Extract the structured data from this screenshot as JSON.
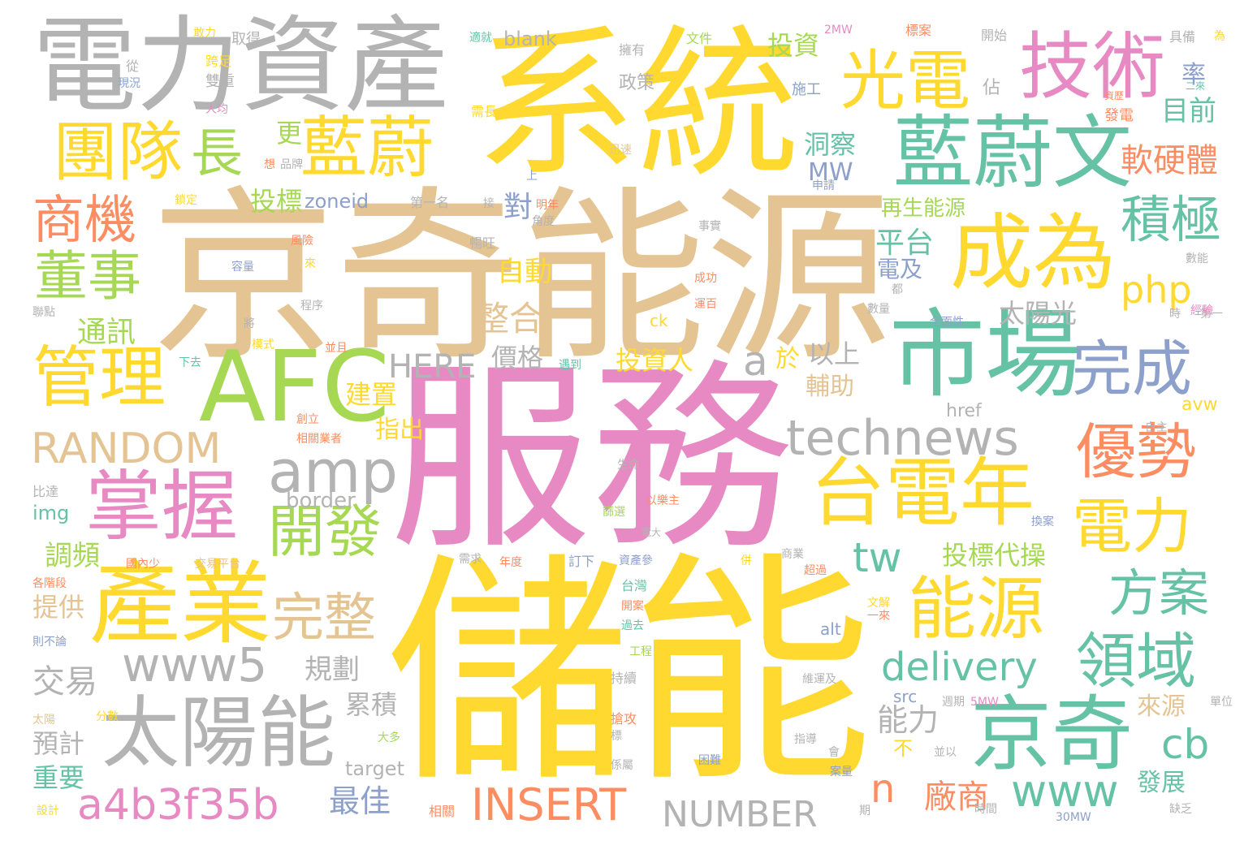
{
  "palette": {
    "tan": "#e5c494",
    "gray": "#b3b3b3",
    "yellow": "#ffd92f",
    "teal": "#66c2a5",
    "orange": "#fc8d62",
    "pink": "#e78ac3",
    "green": "#a6d854",
    "blue": "#8da0cb"
  },
  "words": [
    {
      "text": "京奇能源",
      "color": "#e5c494"
    },
    {
      "text": "服務",
      "color": "#e78ac3"
    },
    {
      "text": "儲能",
      "color": "#ffd92f"
    },
    {
      "text": "系統",
      "color": "#ffd92f"
    },
    {
      "text": "電力資產",
      "color": "#b3b3b3"
    },
    {
      "text": "市場",
      "color": "#66c2a5"
    },
    {
      "text": "藍蔚文",
      "color": "#66c2a5"
    },
    {
      "text": "AFC",
      "color": "#a6d854"
    },
    {
      "text": "成為",
      "color": "#ffd92f"
    },
    {
      "text": "產業",
      "color": "#ffd92f"
    },
    {
      "text": "太陽能",
      "color": "#b3b3b3"
    },
    {
      "text": "京奇",
      "color": "#66c2a5"
    },
    {
      "text": "掌握",
      "color": "#e78ac3"
    },
    {
      "text": "技術",
      "color": "#e78ac3"
    },
    {
      "text": "台電年",
      "color": "#ffd92f"
    },
    {
      "text": "團隊",
      "color": "#ffd92f"
    },
    {
      "text": "藍蔚",
      "color": "#ffd92f"
    },
    {
      "text": "管理",
      "color": "#ffd92f"
    },
    {
      "text": "能源",
      "color": "#ffd92f"
    },
    {
      "text": "光電",
      "color": "#ffd92f"
    },
    {
      "text": "優勢",
      "color": "#fc8d62"
    },
    {
      "text": "電力",
      "color": "#ffd92f"
    },
    {
      "text": "完成",
      "color": "#8da0cb"
    },
    {
      "text": "領域",
      "color": "#66c2a5"
    },
    {
      "text": "開發",
      "color": "#a6d854"
    },
    {
      "text": "technews",
      "color": "#b3b3b3"
    },
    {
      "text": "amp",
      "color": "#b3b3b3"
    },
    {
      "text": "董事",
      "color": "#a6d854"
    },
    {
      "text": "商機",
      "color": "#fc8d62"
    },
    {
      "text": "長",
      "color": "#a6d854"
    },
    {
      "text": "積極",
      "color": "#66c2a5"
    },
    {
      "text": "方案",
      "color": "#66c2a5"
    },
    {
      "text": "完整",
      "color": "#e5c494"
    },
    {
      "text": "RANDOM",
      "color": "#e5c494"
    },
    {
      "text": "www5",
      "color": "#b3b3b3"
    },
    {
      "text": "delivery",
      "color": "#66c2a5"
    },
    {
      "text": "www",
      "color": "#66c2a5"
    },
    {
      "text": "a4b3f35b",
      "color": "#e78ac3"
    },
    {
      "text": "INSERT",
      "color": "#fc8d62"
    },
    {
      "text": "NUMBER",
      "color": "#b3b3b3"
    },
    {
      "text": "tw",
      "color": "#66c2a5"
    },
    {
      "text": "cb",
      "color": "#66c2a5"
    },
    {
      "text": "php",
      "color": "#ffd92f"
    },
    {
      "text": "a",
      "color": "#b3b3b3"
    },
    {
      "text": "n",
      "color": "#fc8d62"
    },
    {
      "text": "HERE",
      "color": "#b3b3b3"
    },
    {
      "text": "軟硬體",
      "color": "#fc8d62"
    },
    {
      "text": "平台",
      "color": "#66c2a5"
    },
    {
      "text": "投資",
      "color": "#a6d854"
    },
    {
      "text": "洞察",
      "color": "#66c2a5"
    },
    {
      "text": "MW",
      "color": "#8da0cb"
    },
    {
      "text": "整合",
      "color": "#e5c494"
    },
    {
      "text": "自動",
      "color": "#ffd92f"
    },
    {
      "text": "通訊",
      "color": "#a6d854"
    },
    {
      "text": "更",
      "color": "#a6d854"
    },
    {
      "text": "投標",
      "color": "#a6d854"
    },
    {
      "text": "對",
      "color": "#8da0cb"
    },
    {
      "text": "率",
      "color": "#8da0cb"
    },
    {
      "text": "目前",
      "color": "#66c2a5"
    },
    {
      "text": "太陽光",
      "color": "#b3b3b3"
    },
    {
      "text": "電及",
      "color": "#8da0cb"
    },
    {
      "text": "再生能源",
      "color": "#a6d854"
    },
    {
      "text": "價格",
      "color": "#b3b3b3"
    },
    {
      "text": "投資人",
      "color": "#ffd92f"
    },
    {
      "text": "以上",
      "color": "#b3b3b3"
    },
    {
      "text": "於",
      "color": "#ffd92f"
    },
    {
      "text": "輔助",
      "color": "#e5c494"
    },
    {
      "text": "建置",
      "color": "#ffd92f"
    },
    {
      "text": "指出",
      "color": "#ffd92f"
    },
    {
      "text": "投標代操",
      "color": "#a6d854"
    },
    {
      "text": "調頻",
      "color": "#a6d854"
    },
    {
      "text": "提供",
      "color": "#e5c494"
    },
    {
      "text": "交易",
      "color": "#b3b3b3"
    },
    {
      "text": "規劃",
      "color": "#b3b3b3"
    },
    {
      "text": "能力",
      "color": "#b3b3b3"
    },
    {
      "text": "累積",
      "color": "#b3b3b3"
    },
    {
      "text": "預計",
      "color": "#b3b3b3"
    },
    {
      "text": "重要",
      "color": "#66c2a5"
    },
    {
      "text": "最佳",
      "color": "#8da0cb"
    },
    {
      "text": "不",
      "color": "#ffd92f"
    },
    {
      "text": "廠商",
      "color": "#fc8d62"
    },
    {
      "text": "發展",
      "color": "#66c2a5"
    },
    {
      "text": "來源",
      "color": "#e5c494"
    },
    {
      "text": "zoneid",
      "color": "#8da0cb"
    },
    {
      "text": "blank",
      "color": "#b3b3b3"
    },
    {
      "text": "border",
      "color": "#b3b3b3"
    },
    {
      "text": "img",
      "color": "#66c2a5"
    },
    {
      "text": "target",
      "color": "#b3b3b3"
    },
    {
      "text": "href",
      "color": "#b3b3b3"
    },
    {
      "text": "avw",
      "color": "#ffd92f"
    },
    {
      "text": "src",
      "color": "#8da0cb"
    },
    {
      "text": "alt",
      "color": "#8da0cb"
    },
    {
      "text": "ck",
      "color": "#ffd92f"
    },
    {
      "text": "政策",
      "color": "#b3b3b3"
    },
    {
      "text": "雙重",
      "color": "#b3b3b3"
    },
    {
      "text": "施工",
      "color": "#8da0cb"
    },
    {
      "text": "佔",
      "color": "#b3b3b3"
    },
    {
      "text": "發電",
      "color": "#fc8d62"
    },
    {
      "text": "文件",
      "color": "#a6d854"
    },
    {
      "text": "標案",
      "color": "#fc8d62"
    },
    {
      "text": "開始",
      "color": "#b3b3b3"
    },
    {
      "text": "擁有",
      "color": "#b3b3b3"
    },
    {
      "text": "取得",
      "color": "#b3b3b3"
    },
    {
      "text": "跨足",
      "color": "#ffd92f"
    },
    {
      "text": "現況",
      "color": "#8da0cb"
    },
    {
      "text": "從",
      "color": "#b3b3b3"
    },
    {
      "text": "人均",
      "color": "#e78ac3"
    },
    {
      "text": "第一名",
      "color": "#b3b3b3"
    },
    {
      "text": "暢旺",
      "color": "#b3b3b3"
    },
    {
      "text": "鎖定",
      "color": "#ffd92f"
    },
    {
      "text": "適就",
      "color": "#66c2a5"
    },
    {
      "text": "敢力",
      "color": "#ffd92f"
    },
    {
      "text": "具備",
      "color": "#b3b3b3"
    },
    {
      "text": "為",
      "color": "#ffd92f"
    },
    {
      "text": "二來",
      "color": "#66c2a5"
    },
    {
      "text": "資歷",
      "color": "#fc8d62"
    },
    {
      "text": "需長",
      "color": "#ffd92f"
    },
    {
      "text": "迅速",
      "color": "#e5c494"
    },
    {
      "text": "想",
      "color": "#fc8d62"
    },
    {
      "text": "品牌",
      "color": "#b3b3b3"
    },
    {
      "text": "上",
      "color": "#8da0cb"
    },
    {
      "text": "接",
      "color": "#b3b3b3"
    },
    {
      "text": "明年",
      "color": "#fc8d62"
    },
    {
      "text": "角度",
      "color": "#b3b3b3"
    },
    {
      "text": "事實",
      "color": "#b3b3b3"
    },
    {
      "text": "申請",
      "color": "#8da0cb"
    },
    {
      "text": "風險",
      "color": "#fc8d62"
    },
    {
      "text": "容量",
      "color": "#8da0cb"
    },
    {
      "text": "來",
      "color": "#ffd92f"
    },
    {
      "text": "程序",
      "color": "#b3b3b3"
    },
    {
      "text": "聯點",
      "color": "#b3b3b3"
    },
    {
      "text": "將",
      "color": "#b3b3b3"
    },
    {
      "text": "模式",
      "color": "#ffd92f"
    },
    {
      "text": "並且",
      "color": "#fc8d62"
    },
    {
      "text": "下去",
      "color": "#66c2a5"
    },
    {
      "text": "成功",
      "color": "#fc8d62"
    },
    {
      "text": "運百",
      "color": "#fc8d62"
    },
    {
      "text": "都",
      "color": "#b3b3b3"
    },
    {
      "text": "數量",
      "color": "#b3b3b3"
    },
    {
      "text": "數能",
      "color": "#b3b3b3"
    },
    {
      "text": "時",
      "color": "#b3b3b3"
    },
    {
      "text": "第一",
      "color": "#b3b3b3"
    },
    {
      "text": "經驗",
      "color": "#e78ac3"
    },
    {
      "text": "全面性",
      "color": "#8da0cb"
    },
    {
      "text": "遇到",
      "color": "#66c2a5"
    },
    {
      "text": "創立",
      "color": "#fc8d62"
    },
    {
      "text": "相關業者",
      "color": "#fc8d62"
    },
    {
      "text": "生命",
      "color": "#b3b3b3"
    },
    {
      "text": "比達",
      "color": "#b3b3b3"
    },
    {
      "text": "國內少",
      "color": "#fc8d62"
    },
    {
      "text": "交易平台",
      "color": "#e5c494"
    },
    {
      "text": "各階段",
      "color": "#fc8d62"
    },
    {
      "text": "則不論",
      "color": "#8da0cb"
    },
    {
      "text": "篩選",
      "color": "#a6d854"
    },
    {
      "text": "需求",
      "color": "#b3b3b3"
    },
    {
      "text": "年度",
      "color": "#fc8d62"
    },
    {
      "text": "訂下",
      "color": "#8da0cb"
    },
    {
      "text": "資產參",
      "color": "#8da0cb"
    },
    {
      "text": "台灣",
      "color": "#66c2a5"
    },
    {
      "text": "商業",
      "color": "#b3b3b3"
    },
    {
      "text": "超過",
      "color": "#fc8d62"
    },
    {
      "text": "文解",
      "color": "#ffd92f"
    },
    {
      "text": "一來",
      "color": "#fc8d62"
    },
    {
      "text": "開案",
      "color": "#fc8d62"
    },
    {
      "text": "過去",
      "color": "#66c2a5"
    },
    {
      "text": "工程",
      "color": "#a6d854"
    },
    {
      "text": "持續",
      "color": "#b3b3b3"
    },
    {
      "text": "搶攻",
      "color": "#fc8d62"
    },
    {
      "text": "維運及",
      "color": "#b3b3b3"
    },
    {
      "text": "週期",
      "color": "#b3b3b3"
    },
    {
      "text": "5MW",
      "color": "#e78ac3"
    },
    {
      "text": "自主",
      "color": "#b3b3b3"
    },
    {
      "text": "單位",
      "color": "#b3b3b3"
    },
    {
      "text": "太陽",
      "color": "#e5c494"
    },
    {
      "text": "分數",
      "color": "#ffd92f"
    },
    {
      "text": "大多",
      "color": "#a6d854"
    },
    {
      "text": "設計",
      "color": "#ffd92f"
    },
    {
      "text": "相關",
      "color": "#fc8d62"
    },
    {
      "text": "標",
      "color": "#b3b3b3"
    },
    {
      "text": "係屬",
      "color": "#b3b3b3"
    },
    {
      "text": "指導",
      "color": "#b3b3b3"
    },
    {
      "text": "困難",
      "color": "#8da0cb"
    },
    {
      "text": "並以",
      "color": "#b3b3b3"
    },
    {
      "text": "時間",
      "color": "#b3b3b3"
    },
    {
      "text": "缺乏",
      "color": "#b3b3b3"
    },
    {
      "text": "期",
      "color": "#b3b3b3"
    },
    {
      "text": "案量",
      "color": "#8da0cb"
    },
    {
      "text": "30MW",
      "color": "#8da0cb"
    },
    {
      "text": "併",
      "color": "#ffd92f"
    },
    {
      "text": "換案",
      "color": "#8da0cb"
    },
    {
      "text": "以樂主",
      "color": "#fc8d62"
    },
    {
      "text": "電大",
      "color": "#b3b3b3"
    },
    {
      "text": "2MW",
      "color": "#e78ac3"
    },
    {
      "text": "會",
      "color": "#b3b3b3"
    }
  ]
}
